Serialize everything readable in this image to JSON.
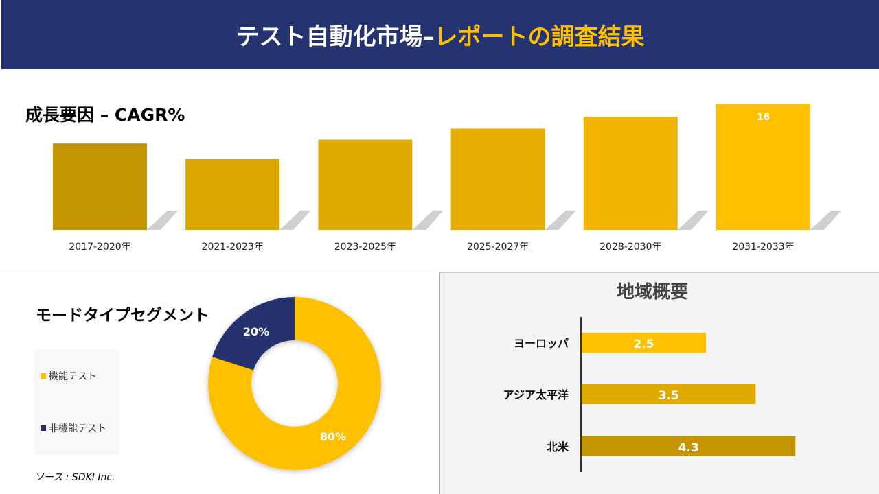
{
  "header": {
    "title_part1": "テスト自動化市場– ",
    "title_part2": "レポートの調査結果"
  },
  "colors": {
    "navy": "#253370",
    "yellow": "#ffc000"
  },
  "cagr_section": {
    "title": "成長要因 – CAGR%"
  },
  "mode_section": {
    "title": "モードタイプセグメント",
    "source": "ソース : SDKI Inc."
  },
  "region_section": {
    "title": "地域概要"
  },
  "chart_data": [
    {
      "type": "bar",
      "title": "成長要因 – CAGR%",
      "categories": [
        "2017-2020年",
        "2021-2023年",
        "2023-2025年",
        "2025-2027年",
        "2028-2030年",
        "2031-2033年"
      ],
      "values": [
        11.0,
        9.0,
        11.5,
        12.9,
        14.4,
        16
      ],
      "data_labels": [
        null,
        null,
        null,
        null,
        null,
        "16"
      ],
      "colors": [
        "#c49500",
        "#d9a700",
        "#e0aa00",
        "#e6ae00",
        "#efb500",
        "#ffc000"
      ],
      "grid": false
    },
    {
      "type": "pie",
      "title": "モードタイプセグメント",
      "donut": true,
      "categories": [
        "機能テスト",
        "非機能テスト"
      ],
      "values": [
        80,
        20
      ],
      "data_labels": [
        "80%",
        "20%"
      ],
      "colors": [
        "#ffc000",
        "#253370"
      ],
      "legend": "left"
    },
    {
      "type": "bar",
      "orientation": "horizontal",
      "title": "地域概要",
      "categories": [
        "ヨーロッパ",
        "アジア太平洋",
        "北米"
      ],
      "values": [
        2.5,
        3.5,
        4.3
      ],
      "data_labels": [
        "2.5",
        "3.5",
        "4.3"
      ],
      "colors": [
        "#ffc000",
        "#e0aa00",
        "#c49500"
      ],
      "grid": false
    }
  ]
}
